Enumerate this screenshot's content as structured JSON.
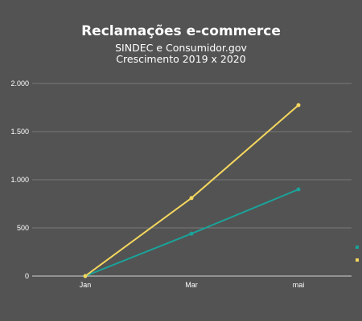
{
  "chart_data": {
    "type": "line",
    "title": "Reclamações e-commerce",
    "subtitle_lines": [
      "SINDEC e Consumidor.gov",
      "Crescimento 2019 x 2020"
    ],
    "categories": [
      "Jan",
      "Mar",
      "mai"
    ],
    "series": [
      {
        "values": [
          0,
          440,
          900
        ],
        "color": "#1aa39a"
      },
      {
        "values": [
          0,
          810,
          1775
        ],
        "color": "#f4d75e"
      }
    ],
    "ylim": [
      0,
      2000
    ],
    "yticks": [
      0,
      500,
      1000,
      1500,
      2000
    ],
    "ytick_labels": [
      "0",
      "500",
      "1.000",
      "1.500",
      "2.000"
    ],
    "grid": true,
    "legend_position": "right"
  },
  "colors": {
    "background": "#535353",
    "grid": "#7a7a7a",
    "axis": "#d0d0d0"
  }
}
